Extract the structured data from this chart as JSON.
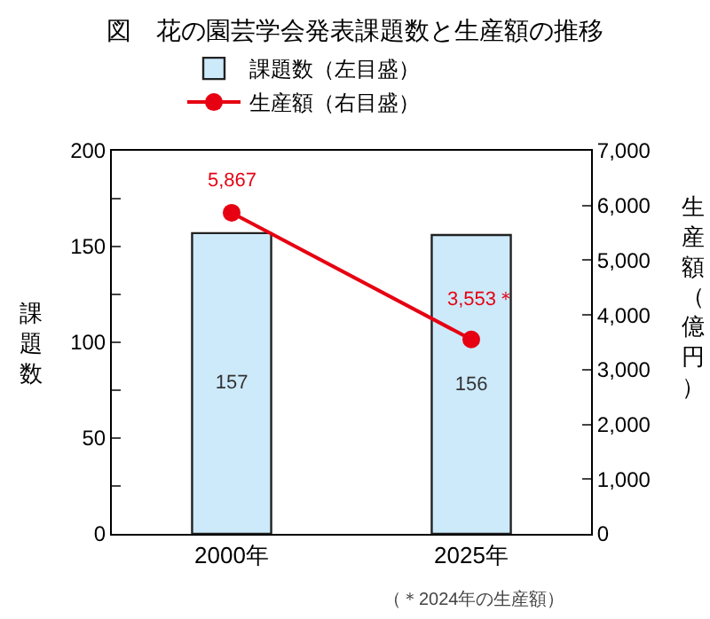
{
  "chart_data": {
    "type": "bar",
    "title": "図　花の園芸学会発表課題数と生産額の推移",
    "categories": [
      "2000年",
      "2025年"
    ],
    "series": [
      {
        "name": "課題数（左目盛）",
        "color": "#cdeafb",
        "values": [
          157,
          156
        ],
        "value_labels": [
          "157",
          "156"
        ]
      },
      {
        "name": "生産額（右目盛）",
        "type": "line",
        "axis": "y2",
        "color": "#e60012",
        "values": [
          5867,
          3553
        ],
        "value_labels": [
          "5,867",
          "3,553＊"
        ]
      }
    ],
    "ylabel": "課題数",
    "y2label": "生産額（億円）",
    "ylim": [
      0,
      200
    ],
    "yticks": [
      0,
      {
        "value": 25,
        "label": null
      },
      50,
      {
        "value": 75,
        "label": null
      },
      100,
      {
        "value": 125,
        "label": null
      },
      150,
      {
        "value": 175,
        "label": null
      },
      200
    ],
    "y2lim": [
      0,
      7000
    ],
    "y2ticks": [
      0,
      {
        "value": 1000,
        "label": "1,000"
      },
      {
        "value": 2000,
        "label": "2,000"
      },
      {
        "value": 3000,
        "label": "3,000"
      },
      {
        "value": 4000,
        "label": "4,000"
      },
      {
        "value": 5000,
        "label": "5,000"
      },
      {
        "value": 6000,
        "label": "6,000"
      },
      {
        "value": 7000,
        "label": "7,000"
      }
    ],
    "annotations": [
      "（＊2024年の生産額）"
    ],
    "legend": "top",
    "grid": false,
    "marker": "circle"
  }
}
